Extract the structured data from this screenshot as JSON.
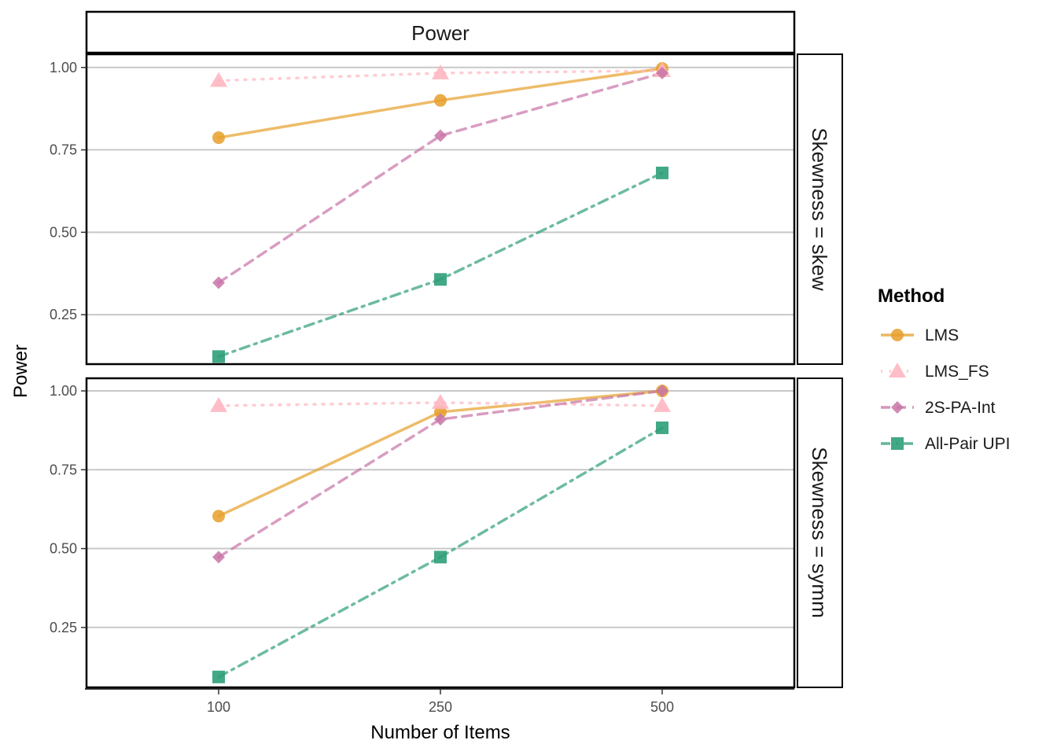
{
  "chart_data": {
    "type": "line",
    "title": "Power",
    "xlabel": "Number of Items",
    "ylabel": "Power",
    "x": [
      100,
      250,
      500
    ],
    "x_tick_labels": [
      "100",
      "250",
      "500"
    ],
    "y_ticks": [
      0.25,
      0.5,
      0.75,
      1.0
    ],
    "y_tick_labels": [
      "0.25",
      "0.50",
      "0.75",
      "1.00"
    ],
    "grid": "horizontal major",
    "legend": {
      "title": "Method",
      "position": "right",
      "entries": [
        "LMS",
        "LMS_FS",
        "2S-PA-Int",
        "All-Pair UPI"
      ]
    },
    "series_styles": [
      {
        "name": "LMS",
        "color": "#E69F2A",
        "dash": "solid",
        "marker": "circle"
      },
      {
        "name": "LMS_FS",
        "color": "#FFB6C1",
        "dash": "dotted",
        "marker": "triangle"
      },
      {
        "name": "2S-PA-Int",
        "color": "#C874A7",
        "dash": "dashed",
        "marker": "diamond"
      },
      {
        "name": "All-Pair UPI",
        "color": "#2E9E78",
        "dash": "dashdot",
        "marker": "square"
      }
    ],
    "panels": [
      {
        "strip": "Skewness = skew",
        "ylim": [
          0.1,
          1.04
        ],
        "series": [
          {
            "name": "LMS",
            "values": [
              0.787,
              0.9,
              0.997
            ]
          },
          {
            "name": "LMS_FS",
            "values": [
              0.96,
              0.983,
              0.99
            ]
          },
          {
            "name": "2S-PA-Int",
            "values": [
              0.347,
              0.793,
              0.983
            ]
          },
          {
            "name": "All-Pair UPI",
            "values": [
              0.123,
              0.357,
              0.68
            ]
          }
        ]
      },
      {
        "strip": "Skewness = symm",
        "ylim": [
          0.06,
          1.04
        ],
        "series": [
          {
            "name": "LMS",
            "values": [
              0.603,
              0.933,
              1.0
            ]
          },
          {
            "name": "LMS_FS",
            "values": [
              0.953,
              0.963,
              0.953
            ]
          },
          {
            "name": "2S-PA-Int",
            "values": [
              0.473,
              0.91,
              1.0
            ]
          },
          {
            "name": "All-Pair UPI",
            "values": [
              0.093,
              0.473,
              0.883
            ]
          }
        ]
      }
    ]
  }
}
